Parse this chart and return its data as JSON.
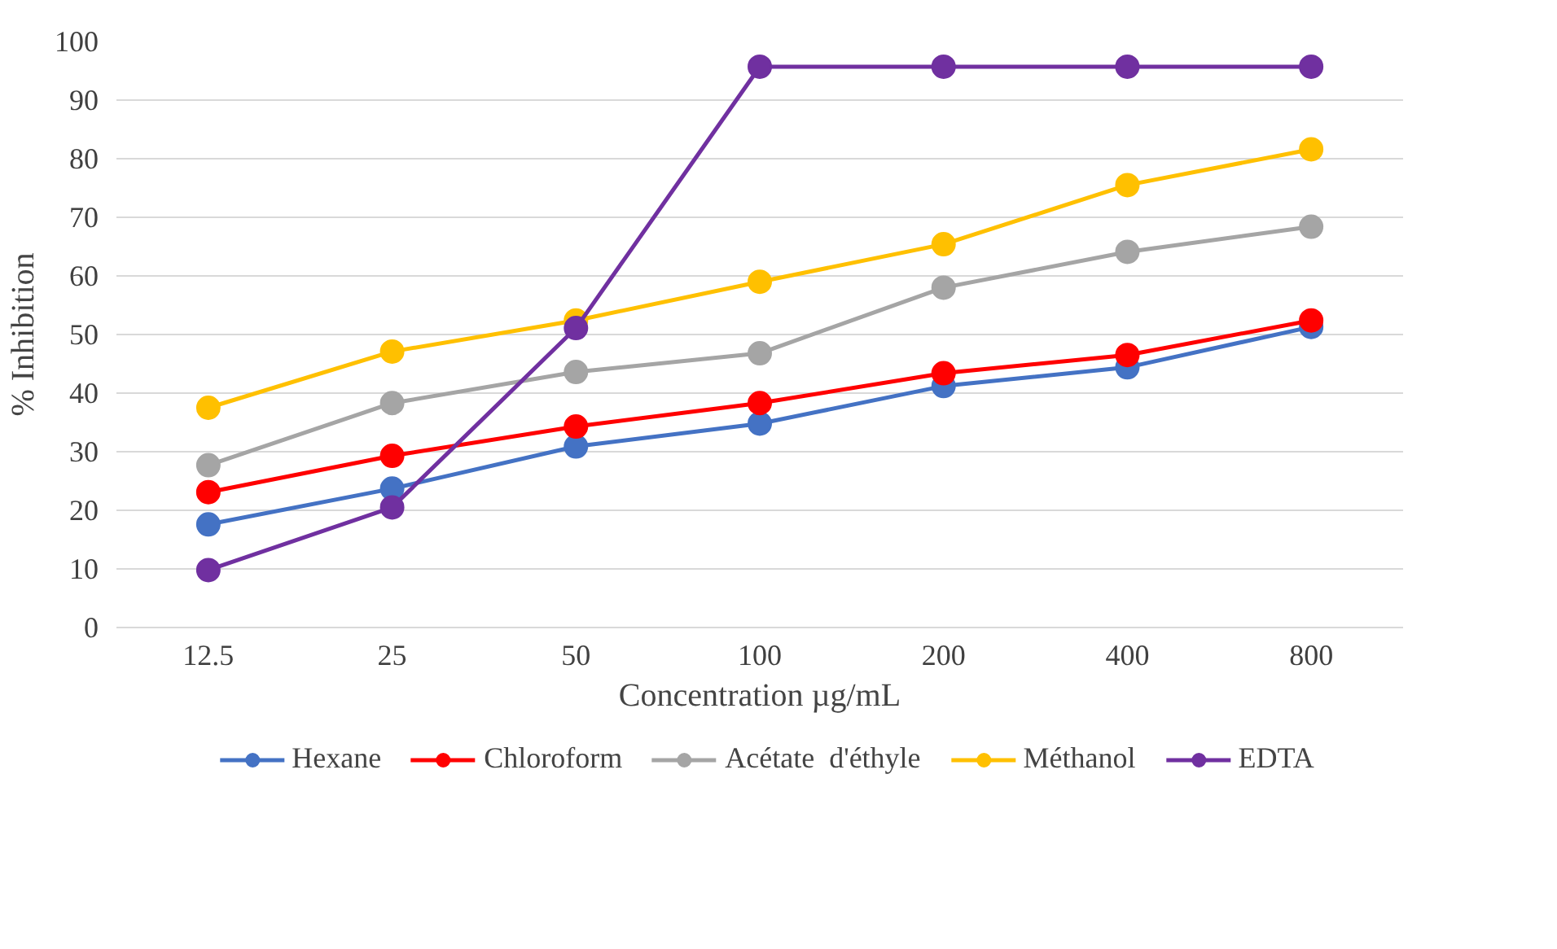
{
  "chart_data": {
    "type": "line",
    "xlabel": "Concentration µg/mL",
    "ylabel": "% Inhibition",
    "categories": [
      "12.5",
      "25",
      "50",
      "100",
      "200",
      "400",
      "800"
    ],
    "ylim": [
      0,
      100
    ],
    "yticks": [
      0,
      10,
      20,
      30,
      40,
      50,
      60,
      70,
      80,
      90,
      100
    ],
    "grid": "y",
    "legend": "bottom",
    "marker": "circle",
    "line_style": "solid",
    "series": [
      {
        "name": "Hexane",
        "color": "#4472c4",
        "values": [
          17.6,
          23.7,
          30.9,
          34.8,
          41.2,
          44.4,
          51.3
        ]
      },
      {
        "name": "Chloroform",
        "color": "#ff0000",
        "values": [
          23.1,
          29.3,
          34.3,
          38.3,
          43.4,
          46.5,
          52.4
        ]
      },
      {
        "name": "Acétate  d'éthyle",
        "color": "#a5a5a5",
        "values": [
          27.7,
          38.3,
          43.6,
          46.8,
          58.0,
          64.1,
          68.4
        ]
      },
      {
        "name": "Méthanol",
        "color": "#ffc000",
        "values": [
          37.5,
          47.1,
          52.4,
          59.0,
          65.4,
          75.5,
          81.6
        ]
      },
      {
        "name": "EDTA",
        "color": "#7030a0",
        "values": [
          9.8,
          20.5,
          51.1,
          95.7,
          95.7,
          95.7,
          95.7
        ]
      }
    ]
  }
}
